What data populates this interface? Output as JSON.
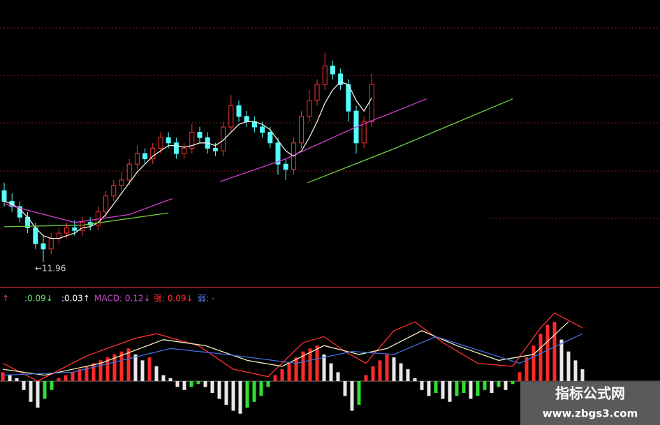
{
  "chart_data": [
    {
      "type": "candlestick",
      "ylim": [
        11.5,
        16.5
      ],
      "annotation": "←11.96",
      "open": [
        13.3,
        13.1,
        13.0,
        12.8,
        12.6,
        12.3,
        12.2,
        12.4,
        12.5,
        12.6,
        12.55,
        12.7,
        12.65,
        12.9,
        13.2,
        13.4,
        13.5,
        13.8,
        14.0,
        13.9,
        14.1,
        14.3,
        14.2,
        14.0,
        14.1,
        14.4,
        14.3,
        14.1,
        14.05,
        14.5,
        14.9,
        14.7,
        14.6,
        14.5,
        14.4,
        14.2,
        13.8,
        13.7,
        14.2,
        14.7,
        15.0,
        15.3,
        15.65,
        15.5,
        15.3,
        14.8,
        14.2,
        14.6
      ],
      "high": [
        13.45,
        13.25,
        13.1,
        12.9,
        12.7,
        12.45,
        12.5,
        12.6,
        12.7,
        12.75,
        12.8,
        12.8,
        13.0,
        13.3,
        13.5,
        13.65,
        13.9,
        14.15,
        14.1,
        14.2,
        14.4,
        14.4,
        14.3,
        14.2,
        14.55,
        14.5,
        14.4,
        14.2,
        14.6,
        15.1,
        15.0,
        14.8,
        14.7,
        14.6,
        14.5,
        14.3,
        13.9,
        14.3,
        14.8,
        15.2,
        15.4,
        15.9,
        15.75,
        15.6,
        15.4,
        14.9,
        14.7,
        15.5
      ],
      "low": [
        13.0,
        12.9,
        12.7,
        12.5,
        12.2,
        11.96,
        12.1,
        12.3,
        12.4,
        12.45,
        12.45,
        12.55,
        12.55,
        12.8,
        13.1,
        13.3,
        13.4,
        13.7,
        13.8,
        13.8,
        14.0,
        14.1,
        13.9,
        13.9,
        14.0,
        14.2,
        14.0,
        13.95,
        13.95,
        14.4,
        14.6,
        14.5,
        14.4,
        14.3,
        14.1,
        13.6,
        13.5,
        13.6,
        14.1,
        14.6,
        14.9,
        15.2,
        15.4,
        15.2,
        14.6,
        14.0,
        14.1,
        14.5
      ],
      "close": [
        13.1,
        13.0,
        12.8,
        12.6,
        12.3,
        12.2,
        12.4,
        12.5,
        12.6,
        12.55,
        12.7,
        12.65,
        12.9,
        13.2,
        13.4,
        13.5,
        13.8,
        14.0,
        13.9,
        14.1,
        14.3,
        14.2,
        14.0,
        14.1,
        14.4,
        14.3,
        14.1,
        14.05,
        14.5,
        14.9,
        14.7,
        14.6,
        14.5,
        14.4,
        14.2,
        13.8,
        13.7,
        14.2,
        14.7,
        15.0,
        15.3,
        15.65,
        15.5,
        15.3,
        14.8,
        14.2,
        14.6,
        15.3
      ],
      "up_color": "#ff3333",
      "down_color": "#54ffff",
      "lines": [
        {
          "color": "#f0f0e0",
          "x": [
            0,
            1,
            2,
            3,
            4,
            5,
            6,
            7,
            8,
            9,
            10,
            11,
            12,
            13,
            14,
            15,
            16,
            17,
            18,
            19,
            20,
            21,
            22,
            23,
            24,
            25,
            26,
            27,
            28,
            29,
            30,
            31,
            32,
            33,
            34,
            35,
            36,
            37,
            38,
            39,
            40,
            41,
            42,
            43,
            44,
            45,
            46,
            47
          ],
          "values": [
            13.1,
            13.05,
            12.95,
            12.8,
            12.6,
            12.45,
            12.4,
            12.4,
            12.45,
            12.5,
            12.6,
            12.62,
            12.7,
            12.85,
            13.05,
            13.25,
            13.45,
            13.65,
            13.8,
            13.95,
            14.05,
            14.15,
            14.15,
            14.12,
            14.15,
            14.2,
            14.2,
            14.15,
            14.25,
            14.4,
            14.55,
            14.6,
            14.6,
            14.55,
            14.45,
            14.25,
            14.05,
            13.95,
            14.05,
            14.3,
            14.6,
            14.95,
            15.2,
            15.35,
            15.3,
            15.0,
            14.8,
            15.05
          ]
        },
        {
          "color": "#d040d0",
          "x": [
            0,
            9,
            16,
            21.5,
            24,
            27.6,
            36,
            45,
            54
          ],
          "values": [
            13.05,
            12.7,
            12.85,
            13.15,
            null,
            13.47,
            13.9,
            14.5,
            15.03
          ]
        },
        {
          "color": "#70d040",
          "x": [
            0,
            10,
            21,
            30,
            38.8,
            50,
            65
          ],
          "values": [
            12.62,
            12.65,
            12.88,
            null,
            13.45,
            14.1,
            15.03
          ]
        }
      ]
    },
    {
      "type": "macd",
      "ylim": [
        -0.12,
        0.25
      ],
      "header": [
        "↑",
        ":0.09↓",
        ":0.03↑",
        "MACD: 0.12↓",
        "强: 0.09↓",
        "弱: -"
      ],
      "header_colors": [
        "#ff4040",
        "#70e070",
        "#ffffff",
        "#d050d0",
        "#ff3030",
        "#6080ff"
      ],
      "values": [
        0.03,
        0.02,
        0.01,
        -0.03,
        -0.07,
        -0.09,
        -0.06,
        -0.03,
        0.01,
        0.02,
        0.03,
        0.04,
        0.05,
        0.06,
        0.07,
        0.08,
        0.09,
        0.1,
        0.11,
        0.09,
        0.07,
        0.08,
        0.05,
        0.02,
        0.01,
        -0.02,
        -0.03,
        -0.02,
        -0.01,
        -0.02,
        -0.04,
        -0.06,
        -0.08,
        -0.1,
        -0.11,
        -0.09,
        -0.07,
        -0.05,
        -0.02,
        0.02,
        0.04,
        0.06,
        0.08,
        0.1,
        0.11,
        0.12,
        0.09,
        0.06,
        0.03,
        -0.05,
        -0.1,
        -0.08,
        0.02,
        0.05,
        0.07,
        0.09,
        0.08,
        0.06,
        0.04,
        0.01,
        -0.03,
        -0.05,
        -0.04,
        -0.06,
        -0.07,
        -0.05,
        -0.04,
        -0.06,
        -0.05,
        -0.03,
        -0.04,
        -0.02,
        -0.03,
        -0.01,
        0.03,
        0.08,
        0.12,
        0.16,
        0.19,
        0.2,
        0.14,
        0.1,
        0.07,
        0.04
      ],
      "colors": {
        "rise_up": "#ff2a2a",
        "fall": "#e8e8e8",
        "rise_down": "#30e030"
      },
      "lines": [
        {
          "color": "#ff3030",
          "x": [
            0,
            5,
            12,
            19,
            22,
            28,
            33,
            38,
            43,
            46,
            49,
            52,
            56,
            59,
            63,
            68,
            73,
            77,
            79,
            83
          ],
          "values": [
            0.06,
            0,
            0.085,
            0.145,
            0.16,
            0.12,
            0.04,
            0.015,
            0.13,
            0.15,
            0.1,
            0.06,
            0.17,
            0.2,
            0.13,
            0.06,
            0.05,
            0.18,
            0.23,
            0.18
          ]
        },
        {
          "color": "#f0f0c0",
          "x": [
            0,
            6,
            14,
            23,
            29,
            35,
            40,
            46,
            51,
            55,
            60,
            65,
            71,
            76,
            81
          ],
          "values": [
            0.04,
            0.02,
            0.06,
            0.14,
            0.12,
            0.07,
            0.05,
            0.12,
            0.09,
            0.11,
            0.17,
            0.12,
            0.07,
            0.09,
            0.2
          ]
        },
        {
          "color": "#4070e0",
          "x": [
            0,
            10,
            24,
            32,
            42,
            50,
            56,
            62,
            74,
            83
          ],
          "values": [
            0.02,
            0.03,
            0.11,
            0.09,
            0.06,
            0.1,
            0.09,
            0.15,
            0.06,
            0.16
          ]
        }
      ]
    }
  ],
  "watermark": {
    "title": "指标公式网",
    "url": "www.zbgs3.com"
  }
}
